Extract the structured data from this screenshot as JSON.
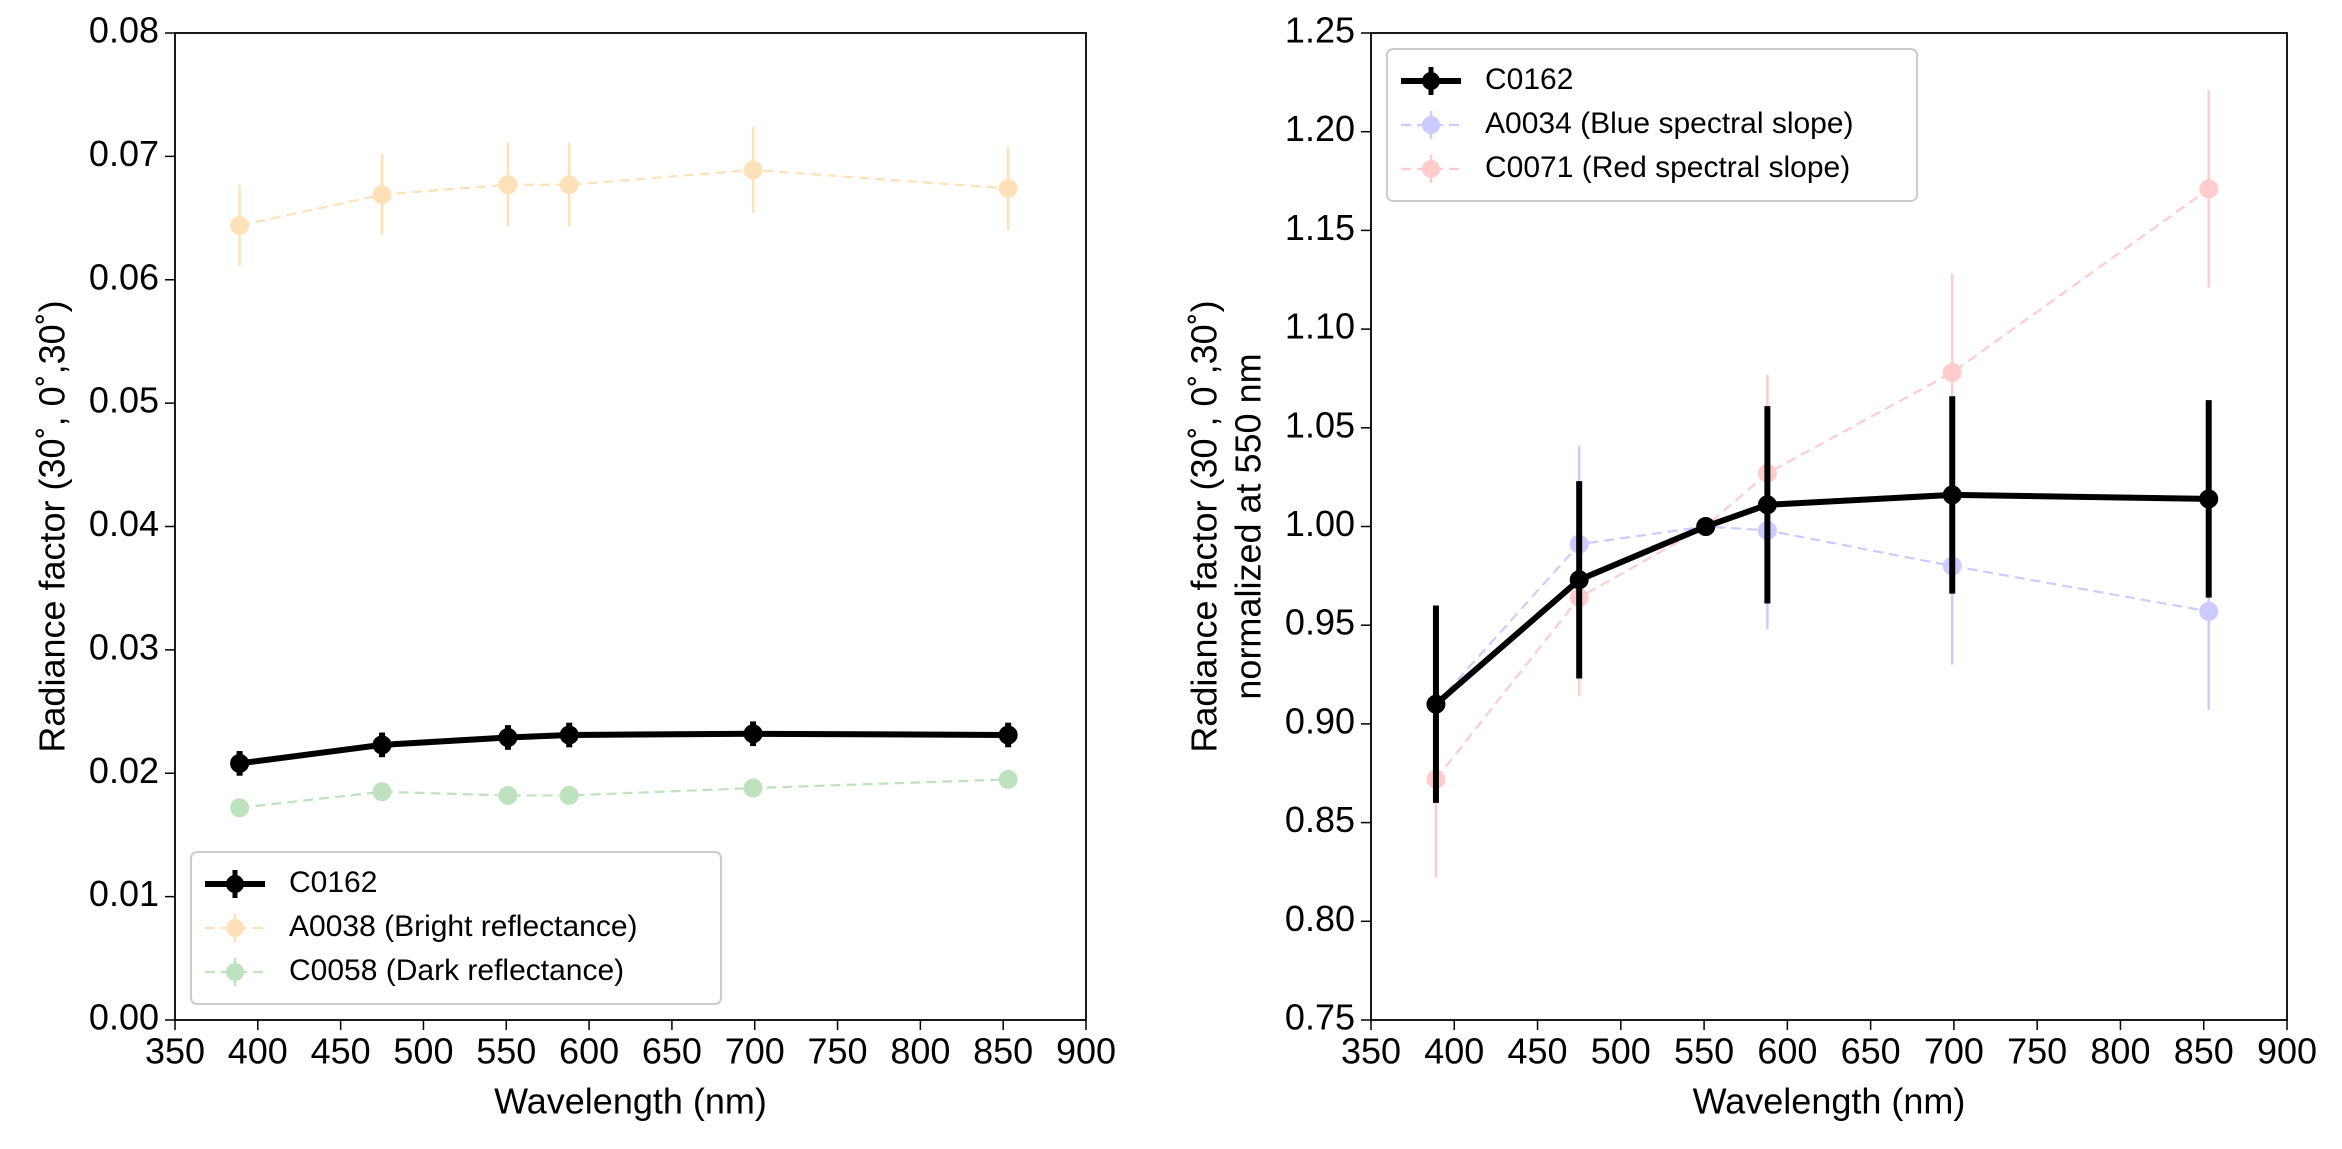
{
  "chart_data": [
    {
      "type": "errorbar-line",
      "xlabel": "Wavelength (nm)",
      "ylabel": [
        "Radiance factor (30˚, 0˚,30˚)"
      ],
      "xlim": [
        350,
        900
      ],
      "xticks": [
        350,
        400,
        450,
        500,
        550,
        600,
        650,
        700,
        750,
        800,
        850,
        900
      ],
      "ylim": [
        0,
        0.08
      ],
      "yticks": [
        {
          "value": 0,
          "label": "0.00"
        },
        {
          "value": 0.01,
          "label": "0.01"
        },
        {
          "value": 0.02,
          "label": "0.02"
        },
        {
          "value": 0.03,
          "label": "0.03"
        },
        {
          "value": 0.04,
          "label": "0.04"
        },
        {
          "value": 0.05,
          "label": "0.05"
        },
        {
          "value": 0.06,
          "label": "0.06"
        },
        {
          "value": 0.07,
          "label": "0.07"
        },
        {
          "value": 0.08,
          "label": "0.08"
        }
      ],
      "legend": "lower left",
      "series": [
        {
          "name": "C0162",
          "color": "#000000",
          "alpha": 1,
          "style": "solid",
          "x": [
            389,
            475,
            551,
            588,
            699,
            853
          ],
          "values": [
            0.0208,
            0.0223,
            0.0229,
            0.0231,
            0.0232,
            0.0231
          ],
          "errors": [
            0.001,
            0.001,
            0.001,
            0.001,
            0.001,
            0.001
          ]
        },
        {
          "name": "A0038 (Bright reflectance)",
          "color": "#ff9f1c",
          "alpha": 0.3,
          "style": "dashed",
          "x": [
            389,
            475,
            551,
            588,
            699,
            853
          ],
          "values": [
            0.0644,
            0.0669,
            0.0677,
            0.0677,
            0.0689,
            0.0674
          ],
          "errors": [
            0.0033,
            0.0033,
            0.0034,
            0.0034,
            0.0035,
            0.0034
          ]
        },
        {
          "name": "C0058 (Dark reflectance)",
          "color": "#2ca02c",
          "alpha": 0.3,
          "style": "dashed",
          "x": [
            389,
            475,
            551,
            588,
            699,
            853
          ],
          "values": [
            0.0172,
            0.0185,
            0.0182,
            0.0182,
            0.0188,
            0.0195
          ],
          "errors": [
            0.0006,
            0.0006,
            0.0006,
            0.0006,
            0.0006,
            0.0006
          ]
        }
      ]
    },
    {
      "type": "errorbar-line",
      "xlabel": "Wavelength (nm)",
      "ylabel": [
        "Radiance factor (30˚, 0˚,30˚)",
        "normalized at 550 nm"
      ],
      "xlim": [
        350,
        900
      ],
      "xticks": [
        350,
        400,
        450,
        500,
        550,
        600,
        650,
        700,
        750,
        800,
        850,
        900
      ],
      "ylim": [
        0.75,
        1.25
      ],
      "yticks": [
        {
          "value": 0.75,
          "label": "0.75"
        },
        {
          "value": 0.8,
          "label": "0.80"
        },
        {
          "value": 0.85,
          "label": "0.85"
        },
        {
          "value": 0.9,
          "label": "0.90"
        },
        {
          "value": 0.95,
          "label": "0.95"
        },
        {
          "value": 1,
          "label": "1.00"
        },
        {
          "value": 1.05,
          "label": "1.05"
        },
        {
          "value": 1.1,
          "label": "1.10"
        },
        {
          "value": 1.15,
          "label": "1.15"
        },
        {
          "value": 1.2,
          "label": "1.20"
        },
        {
          "value": 1.25,
          "label": "1.25"
        }
      ],
      "legend": "upper left",
      "series": [
        {
          "name": "C0162",
          "color": "#000000",
          "alpha": 1,
          "style": "solid",
          "x": [
            389,
            475,
            551,
            588,
            699,
            853
          ],
          "values": [
            0.91,
            0.973,
            1.0,
            1.011,
            1.016,
            1.014
          ],
          "errors": [
            0.05,
            0.05,
            0,
            0.05,
            0.05,
            0.05
          ]
        },
        {
          "name": "A0034 (Blue spectral slope)",
          "color": "#0000ff",
          "alpha": 0.2,
          "style": "dashed",
          "x": [
            389,
            475,
            551,
            588,
            699,
            853
          ],
          "values": [
            0.91,
            0.991,
            1.0,
            0.998,
            0.98,
            0.957
          ],
          "errors": [
            0.05,
            0.05,
            0,
            0.05,
            0.05,
            0.05
          ]
        },
        {
          "name": "C0071 (Red spectral slope)",
          "color": "#ff0000",
          "alpha": 0.2,
          "style": "dashed",
          "x": [
            389,
            475,
            551,
            588,
            699,
            853
          ],
          "values": [
            0.872,
            0.964,
            1.0,
            1.027,
            1.078,
            1.171
          ],
          "errors": [
            0.05,
            0.05,
            0,
            0.05,
            0.05,
            0.05
          ]
        }
      ]
    }
  ]
}
